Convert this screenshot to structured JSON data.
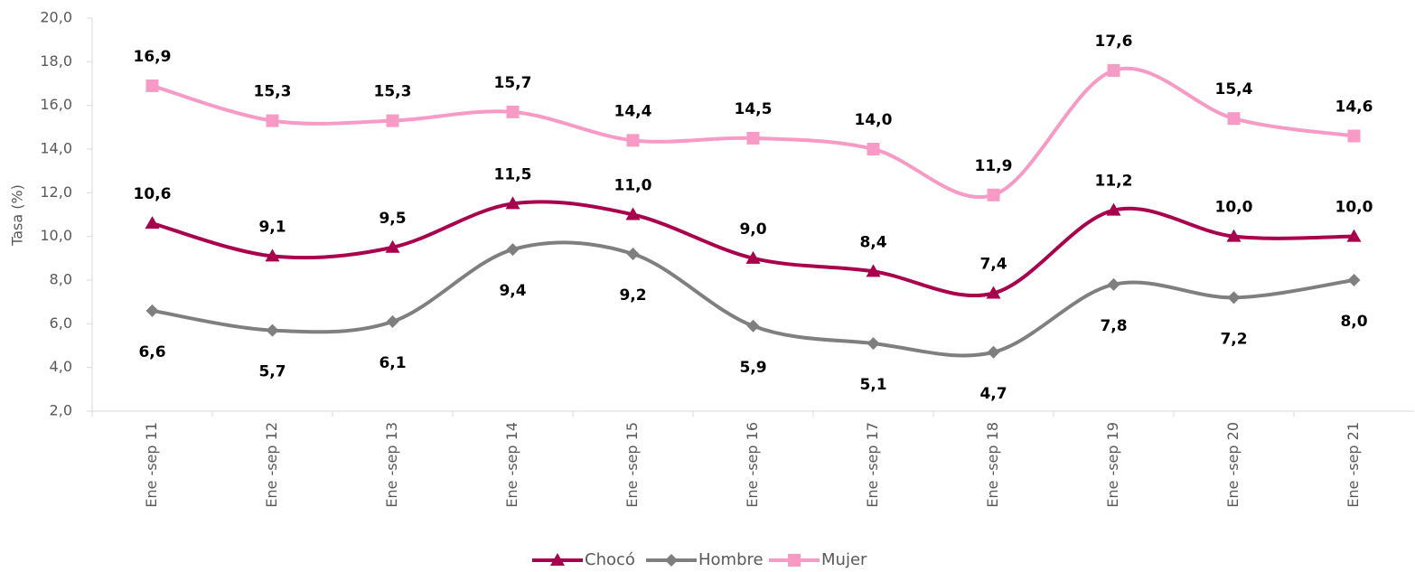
{
  "chart_data": {
    "type": "line",
    "y_label": "Tasa (%)",
    "categories": [
      "Ene -sep 11",
      "Ene -sep 12",
      "Ene -sep 13",
      "Ene -sep 14",
      "Ene -sep 15",
      "Ene -sep 16",
      "Ene -sep 17",
      "Ene -sep 18",
      "Ene -sep 19",
      "Ene -sep 20",
      "Ene -sep 21"
    ],
    "series": [
      {
        "name": "Chocó",
        "color": "#a8004c",
        "marker": "triangle",
        "label_position": "above",
        "values": [
          10.6,
          9.1,
          9.5,
          11.5,
          11.0,
          9.0,
          8.4,
          7.4,
          11.2,
          10.0,
          10.0
        ],
        "value_labels": [
          "10,6",
          "9,1",
          "9,5",
          "11,5",
          "11,0",
          "9,0",
          "8,4",
          "7,4",
          "11,2",
          "10,0",
          "10,0"
        ]
      },
      {
        "name": "Hombre",
        "color": "#7f7f7f",
        "marker": "diamond",
        "label_position": "below",
        "values": [
          6.6,
          5.7,
          6.1,
          9.4,
          9.2,
          5.9,
          5.1,
          4.7,
          7.8,
          7.2,
          8.0
        ],
        "value_labels": [
          "6,6",
          "5,7",
          "6,1",
          "9,4",
          "9,2",
          "5,9",
          "5,1",
          "4,7",
          "7,8",
          "7,2",
          "8,0"
        ]
      },
      {
        "name": "Mujer",
        "color": "#f79ac6",
        "marker": "square",
        "label_position": "above",
        "values": [
          16.9,
          15.3,
          15.3,
          15.7,
          14.4,
          14.5,
          14.0,
          11.9,
          17.6,
          15.4,
          14.6
        ],
        "value_labels": [
          "16,9",
          "15,3",
          "15,3",
          "15,7",
          "14,4",
          "14,5",
          "14,0",
          "11,9",
          "17,6",
          "15,4",
          "14,6"
        ]
      }
    ],
    "ylim": [
      2,
      20
    ],
    "yticks": [
      {
        "value": 2,
        "label": "2,0"
      },
      {
        "value": 4,
        "label": "4,0"
      },
      {
        "value": 6,
        "label": "6,0"
      },
      {
        "value": 8,
        "label": "8,0"
      },
      {
        "value": 10,
        "label": "10,0"
      },
      {
        "value": 12,
        "label": "12,0"
      },
      {
        "value": 14,
        "label": "14,0"
      },
      {
        "value": 16,
        "label": "16,0"
      },
      {
        "value": 18,
        "label": "18,0"
      },
      {
        "value": 20,
        "label": "20,0"
      }
    ],
    "grid": false,
    "smooth": true,
    "legend": "bottom"
  }
}
